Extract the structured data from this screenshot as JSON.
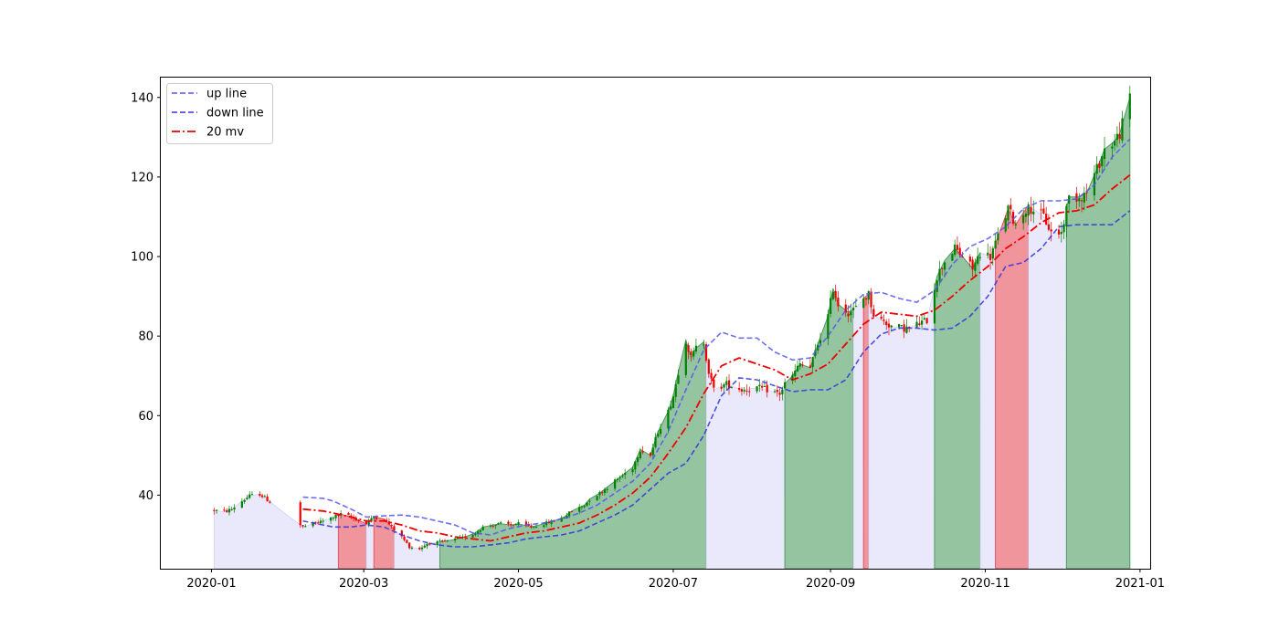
{
  "chart_data": {
    "type": "candlestick",
    "title": "",
    "xlabel": "",
    "ylabel": "",
    "xlim": [
      "2019-12-12",
      "2021-01-05"
    ],
    "ylim": [
      21.5,
      145
    ],
    "grid": false,
    "legend_position": "top-left",
    "x_ticks": [
      "2020-01",
      "2020-03",
      "2020-05",
      "2020-07",
      "2020-09",
      "2020-11",
      "2021-01"
    ],
    "x_tick_dates": [
      "2020-01-01",
      "2020-03-01",
      "2020-05-01",
      "2020-07-01",
      "2020-09-01",
      "2020-11-01",
      "2021-01-01"
    ],
    "y_ticks": [
      40,
      60,
      80,
      100,
      120,
      140
    ],
    "legend": [
      {
        "label": "up line",
        "color": "#5555ee",
        "style": "dashed"
      },
      {
        "label": "down line",
        "color": "#3333dd",
        "style": "dashed"
      },
      {
        "label": "20 mv",
        "color": "#ee0000",
        "style": "dashdot"
      }
    ],
    "colors": {
      "up_candle": "#008000",
      "down_candle": "#ee0000",
      "fill_up": "#8fc19b",
      "fill_down": "#f08f98",
      "fill_neutral": "#e8e8fb"
    },
    "price_line": [
      [
        "2020-01-02",
        36.2
      ],
      [
        "2020-01-06",
        35.8
      ],
      [
        "2020-01-09",
        36.5
      ],
      [
        "2020-01-13",
        38.5
      ],
      [
        "2020-01-16",
        39.8
      ],
      [
        "2020-01-20",
        40.3
      ],
      [
        "2020-01-23",
        38.8
      ],
      [
        "2020-02-06",
        32.0
      ],
      [
        "2020-02-10",
        32.8
      ],
      [
        "2020-02-14",
        33.5
      ],
      [
        "2020-02-18",
        34.5
      ],
      [
        "2020-02-21",
        35.2
      ],
      [
        "2020-02-25",
        34.5
      ],
      [
        "2020-03-02",
        32.8
      ],
      [
        "2020-03-05",
        34.5
      ],
      [
        "2020-03-09",
        34.0
      ],
      [
        "2020-03-12",
        32.0
      ],
      [
        "2020-03-16",
        29.5
      ],
      [
        "2020-03-19",
        27.0
      ],
      [
        "2020-03-23",
        26.5
      ],
      [
        "2020-03-26",
        27.8
      ],
      [
        "2020-03-31",
        28.2
      ],
      [
        "2020-04-03",
        28.5
      ],
      [
        "2020-04-07",
        29.0
      ],
      [
        "2020-04-10",
        29.5
      ],
      [
        "2020-04-14",
        30.5
      ],
      [
        "2020-04-17",
        32.0
      ],
      [
        "2020-04-21",
        32.5
      ],
      [
        "2020-04-24",
        32.8
      ],
      [
        "2020-04-28",
        32.5
      ],
      [
        "2020-05-01",
        32.8
      ],
      [
        "2020-05-06",
        32.0
      ],
      [
        "2020-05-11",
        32.8
      ],
      [
        "2020-05-15",
        33.5
      ],
      [
        "2020-05-19",
        34.5
      ],
      [
        "2020-05-22",
        36.0
      ],
      [
        "2020-05-27",
        37.5
      ],
      [
        "2020-05-29",
        39.0
      ],
      [
        "2020-06-02",
        40.5
      ],
      [
        "2020-06-05",
        42.0
      ],
      [
        "2020-06-08",
        43.5
      ],
      [
        "2020-06-11",
        45.0
      ],
      [
        "2020-06-15",
        47.0
      ],
      [
        "2020-06-18",
        51.5
      ],
      [
        "2020-06-22",
        50.0
      ],
      [
        "2020-06-25",
        56.0
      ],
      [
        "2020-06-29",
        61.0
      ],
      [
        "2020-07-01",
        65.0
      ],
      [
        "2020-07-03",
        71.0
      ],
      [
        "2020-07-06",
        79.0
      ],
      [
        "2020-07-08",
        74.5
      ],
      [
        "2020-07-10",
        77.0
      ],
      [
        "2020-07-13",
        78.5
      ],
      [
        "2020-07-15",
        71.0
      ],
      [
        "2020-07-17",
        66.5
      ],
      [
        "2020-07-22",
        68.0
      ],
      [
        "2020-07-28",
        66.5
      ],
      [
        "2020-08-03",
        67.0
      ],
      [
        "2020-08-07",
        66.5
      ],
      [
        "2020-08-12",
        65.5
      ],
      [
        "2020-08-14",
        68.0
      ],
      [
        "2020-08-17",
        70.0
      ],
      [
        "2020-08-20",
        73.0
      ],
      [
        "2020-08-24",
        72.0
      ],
      [
        "2020-08-27",
        78.0
      ],
      [
        "2020-08-31",
        85.0
      ],
      [
        "2020-09-02",
        92.0
      ],
      [
        "2020-09-04",
        88.0
      ],
      [
        "2020-09-08",
        86.0
      ],
      [
        "2020-09-11",
        87.0
      ],
      [
        "2020-09-14",
        89.5
      ],
      [
        "2020-09-16",
        90.5
      ],
      [
        "2020-09-18",
        85.5
      ],
      [
        "2020-09-21",
        84.0
      ],
      [
        "2020-09-25",
        82.5
      ],
      [
        "2020-09-29",
        82.0
      ],
      [
        "2020-10-02",
        82.0
      ],
      [
        "2020-10-09",
        84.0
      ],
      [
        "2020-10-13",
        95.0
      ],
      [
        "2020-10-16",
        99.0
      ],
      [
        "2020-10-20",
        102.0
      ],
      [
        "2020-10-23",
        100.0
      ],
      [
        "2020-10-27",
        97.0
      ],
      [
        "2020-10-30",
        101.0
      ],
      [
        "2020-11-03",
        100.0
      ],
      [
        "2020-11-06",
        105.0
      ],
      [
        "2020-11-10",
        112.0
      ],
      [
        "2020-11-13",
        108.0
      ],
      [
        "2020-11-17",
        112.0
      ],
      [
        "2020-11-20",
        112.0
      ],
      [
        "2020-11-24",
        110.0
      ],
      [
        "2020-11-27",
        106.0
      ],
      [
        "2020-12-01",
        106.0
      ],
      [
        "2020-12-04",
        115.0
      ],
      [
        "2020-12-08",
        115.0
      ],
      [
        "2020-12-11",
        116.0
      ],
      [
        "2020-12-15",
        122.0
      ],
      [
        "2020-12-18",
        127.0
      ],
      [
        "2020-12-22",
        129.0
      ],
      [
        "2020-12-24",
        131.0
      ],
      [
        "2020-12-28",
        140.0
      ]
    ],
    "series": [
      {
        "name": "up line",
        "points": [
          [
            "2020-02-06",
            39.5
          ],
          [
            "2020-02-14",
            39.2
          ],
          [
            "2020-02-18",
            38.5
          ],
          [
            "2020-02-25",
            36.5
          ],
          [
            "2020-03-02",
            34.5
          ],
          [
            "2020-03-09",
            34.8
          ],
          [
            "2020-03-16",
            35.0
          ],
          [
            "2020-03-23",
            34.5
          ],
          [
            "2020-03-30",
            33.5
          ],
          [
            "2020-04-06",
            32.5
          ],
          [
            "2020-04-13",
            30.5
          ],
          [
            "2020-04-20",
            30.0
          ],
          [
            "2020-04-27",
            31.5
          ],
          [
            "2020-05-04",
            32.5
          ],
          [
            "2020-05-11",
            33.0
          ],
          [
            "2020-05-18",
            34.0
          ],
          [
            "2020-05-25",
            35.5
          ],
          [
            "2020-06-01",
            37.5
          ],
          [
            "2020-06-08",
            40.5
          ],
          [
            "2020-06-15",
            43.5
          ],
          [
            "2020-06-22",
            48.0
          ],
          [
            "2020-06-29",
            56.0
          ],
          [
            "2020-07-06",
            66.5
          ],
          [
            "2020-07-13",
            76.5
          ],
          [
            "2020-07-20",
            81.0
          ],
          [
            "2020-07-27",
            79.5
          ],
          [
            "2020-08-03",
            79.5
          ],
          [
            "2020-08-10",
            76.0
          ],
          [
            "2020-08-17",
            74.0
          ],
          [
            "2020-08-24",
            74.5
          ],
          [
            "2020-08-31",
            80.0
          ],
          [
            "2020-09-07",
            86.5
          ],
          [
            "2020-09-14",
            90.5
          ],
          [
            "2020-09-21",
            91.0
          ],
          [
            "2020-09-28",
            89.5
          ],
          [
            "2020-10-05",
            88.5
          ],
          [
            "2020-10-12",
            91.5
          ],
          [
            "2020-10-19",
            98.0
          ],
          [
            "2020-10-26",
            102.5
          ],
          [
            "2020-11-02",
            104.5
          ],
          [
            "2020-11-09",
            107.5
          ],
          [
            "2020-11-16",
            112.0
          ],
          [
            "2020-11-23",
            114.0
          ],
          [
            "2020-11-30",
            114.0
          ],
          [
            "2020-12-07",
            114.5
          ],
          [
            "2020-12-14",
            118.0
          ],
          [
            "2020-12-21",
            125.0
          ],
          [
            "2020-12-28",
            129.5
          ]
        ]
      },
      {
        "name": "down line",
        "points": [
          [
            "2020-02-06",
            33.5
          ],
          [
            "2020-02-14",
            32.5
          ],
          [
            "2020-02-18",
            32.0
          ],
          [
            "2020-02-25",
            32.0
          ],
          [
            "2020-03-02",
            32.5
          ],
          [
            "2020-03-09",
            32.0
          ],
          [
            "2020-03-16",
            30.0
          ],
          [
            "2020-03-23",
            28.5
          ],
          [
            "2020-03-30",
            27.5
          ],
          [
            "2020-04-06",
            27.0
          ],
          [
            "2020-04-13",
            27.0
          ],
          [
            "2020-04-20",
            27.5
          ],
          [
            "2020-04-27",
            28.0
          ],
          [
            "2020-05-04",
            29.0
          ],
          [
            "2020-05-11",
            29.5
          ],
          [
            "2020-05-18",
            30.0
          ],
          [
            "2020-05-25",
            31.0
          ],
          [
            "2020-06-01",
            33.0
          ],
          [
            "2020-06-08",
            35.0
          ],
          [
            "2020-06-15",
            37.5
          ],
          [
            "2020-06-22",
            41.5
          ],
          [
            "2020-06-29",
            45.5
          ],
          [
            "2020-07-06",
            48.0
          ],
          [
            "2020-07-13",
            55.0
          ],
          [
            "2020-07-20",
            65.0
          ],
          [
            "2020-07-27",
            69.5
          ],
          [
            "2020-08-03",
            69.0
          ],
          [
            "2020-08-10",
            67.5
          ],
          [
            "2020-08-17",
            66.0
          ],
          [
            "2020-08-24",
            66.5
          ],
          [
            "2020-08-31",
            66.5
          ],
          [
            "2020-09-07",
            69.0
          ],
          [
            "2020-09-14",
            76.0
          ],
          [
            "2020-09-21",
            80.5
          ],
          [
            "2020-09-28",
            82.0
          ],
          [
            "2020-10-05",
            82.0
          ],
          [
            "2020-10-12",
            81.5
          ],
          [
            "2020-10-19",
            82.0
          ],
          [
            "2020-10-26",
            85.0
          ],
          [
            "2020-11-02",
            90.0
          ],
          [
            "2020-11-09",
            97.5
          ],
          [
            "2020-11-16",
            98.5
          ],
          [
            "2020-11-23",
            102.0
          ],
          [
            "2020-11-30",
            107.5
          ],
          [
            "2020-12-07",
            108.0
          ],
          [
            "2020-12-14",
            108.0
          ],
          [
            "2020-12-21",
            108.0
          ],
          [
            "2020-12-28",
            111.5
          ]
        ]
      },
      {
        "name": "20 mv",
        "points": [
          [
            "2020-02-06",
            36.5
          ],
          [
            "2020-02-14",
            36.0
          ],
          [
            "2020-02-18",
            35.5
          ],
          [
            "2020-02-25",
            34.5
          ],
          [
            "2020-03-02",
            33.5
          ],
          [
            "2020-03-09",
            33.5
          ],
          [
            "2020-03-16",
            32.5
          ],
          [
            "2020-03-23",
            31.0
          ],
          [
            "2020-03-30",
            30.5
          ],
          [
            "2020-04-06",
            29.5
          ],
          [
            "2020-04-13",
            29.0
          ],
          [
            "2020-04-20",
            28.5
          ],
          [
            "2020-04-27",
            29.5
          ],
          [
            "2020-05-04",
            30.5
          ],
          [
            "2020-05-11",
            31.0
          ],
          [
            "2020-05-18",
            32.0
          ],
          [
            "2020-05-25",
            33.0
          ],
          [
            "2020-06-01",
            35.0
          ],
          [
            "2020-06-08",
            37.5
          ],
          [
            "2020-06-15",
            40.5
          ],
          [
            "2020-06-22",
            44.5
          ],
          [
            "2020-06-29",
            50.5
          ],
          [
            "2020-07-06",
            57.0
          ],
          [
            "2020-07-13",
            65.5
          ],
          [
            "2020-07-20",
            72.5
          ],
          [
            "2020-07-27",
            74.5
          ],
          [
            "2020-08-03",
            73.0
          ],
          [
            "2020-08-10",
            71.5
          ],
          [
            "2020-08-17",
            69.0
          ],
          [
            "2020-08-24",
            70.5
          ],
          [
            "2020-08-31",
            73.0
          ],
          [
            "2020-09-07",
            78.0
          ],
          [
            "2020-09-14",
            83.0
          ],
          [
            "2020-09-21",
            86.0
          ],
          [
            "2020-09-28",
            85.5
          ],
          [
            "2020-10-05",
            85.0
          ],
          [
            "2020-10-12",
            86.5
          ],
          [
            "2020-10-19",
            90.0
          ],
          [
            "2020-10-26",
            94.0
          ],
          [
            "2020-11-02",
            97.5
          ],
          [
            "2020-11-09",
            102.0
          ],
          [
            "2020-11-16",
            105.0
          ],
          [
            "2020-11-23",
            108.5
          ],
          [
            "2020-11-30",
            111.0
          ],
          [
            "2020-12-07",
            111.5
          ],
          [
            "2020-12-14",
            113.0
          ],
          [
            "2020-12-21",
            117.0
          ],
          [
            "2020-12-28",
            120.5
          ]
        ]
      }
    ],
    "fill_regions": [
      {
        "start": "2020-01-02",
        "end": "2020-02-20",
        "signal": "neutral"
      },
      {
        "start": "2020-02-20",
        "end": "2020-03-02",
        "signal": "down"
      },
      {
        "start": "2020-03-02",
        "end": "2020-03-05",
        "signal": "neutral"
      },
      {
        "start": "2020-03-05",
        "end": "2020-03-13",
        "signal": "down"
      },
      {
        "start": "2020-03-13",
        "end": "2020-03-31",
        "signal": "neutral"
      },
      {
        "start": "2020-03-31",
        "end": "2020-07-14",
        "signal": "up"
      },
      {
        "start": "2020-07-14",
        "end": "2020-08-14",
        "signal": "neutral"
      },
      {
        "start": "2020-08-14",
        "end": "2020-09-10",
        "signal": "up"
      },
      {
        "start": "2020-09-10",
        "end": "2020-09-14",
        "signal": "neutral"
      },
      {
        "start": "2020-09-14",
        "end": "2020-09-16",
        "signal": "down"
      },
      {
        "start": "2020-09-16",
        "end": "2020-10-12",
        "signal": "neutral"
      },
      {
        "start": "2020-10-12",
        "end": "2020-10-30",
        "signal": "up"
      },
      {
        "start": "2020-10-30",
        "end": "2020-11-05",
        "signal": "neutral"
      },
      {
        "start": "2020-11-05",
        "end": "2020-11-18",
        "signal": "down"
      },
      {
        "start": "2020-11-18",
        "end": "2020-12-03",
        "signal": "neutral"
      },
      {
        "start": "2020-12-03",
        "end": "2020-12-28",
        "signal": "up"
      }
    ]
  }
}
